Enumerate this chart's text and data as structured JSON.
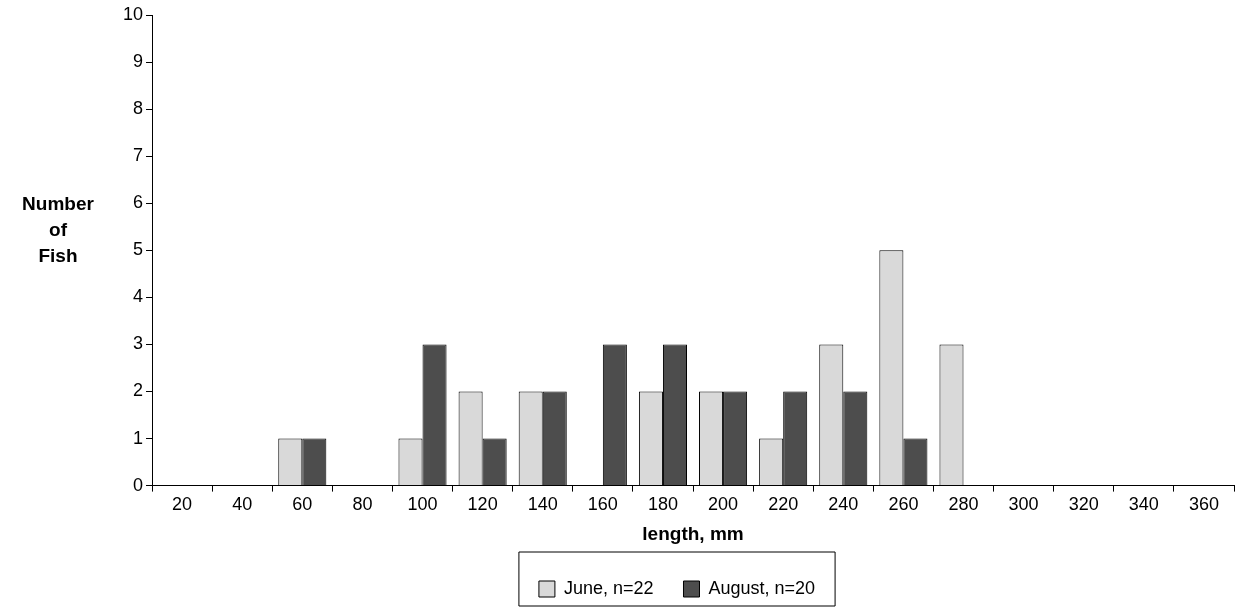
{
  "chart_data": {
    "type": "bar",
    "xlabel": "length, mm",
    "ylabel": "Number of Fish",
    "categories": [
      "20",
      "40",
      "60",
      "80",
      "100",
      "120",
      "140",
      "160",
      "180",
      "200",
      "220",
      "240",
      "260",
      "280",
      "300",
      "320",
      "340",
      "360"
    ],
    "series": [
      {
        "name": "June, n=22",
        "color": "#d9d9d9",
        "values": [
          0,
          0,
          1,
          0,
          1,
          2,
          2,
          0,
          2,
          2,
          1,
          3,
          5,
          3,
          0,
          0,
          0,
          0
        ]
      },
      {
        "name": "August, n=20",
        "color": "#4d4d4d",
        "values": [
          0,
          0,
          1,
          0,
          3,
          1,
          2,
          3,
          3,
          2,
          2,
          2,
          1,
          0,
          0,
          0,
          0,
          0
        ]
      }
    ],
    "ylim": [
      0,
      10
    ],
    "yticks": [
      0,
      1,
      2,
      3,
      4,
      5,
      6,
      7,
      8,
      9,
      10
    ],
    "grid": false,
    "legend": "bottom"
  }
}
